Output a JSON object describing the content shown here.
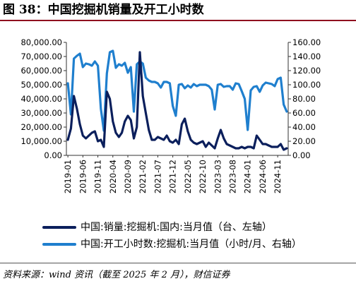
{
  "title": "图 38：中国挖掘机销量及开工小时数",
  "source": "资料来源：wind 资讯（截至 2025 年 2 月），财信证券",
  "colors": {
    "left_series": "#0b1f5c",
    "right_series": "#1f7fce",
    "title_rule": "#8f0d1f"
  },
  "chart_data": {
    "type": "line",
    "title": "",
    "legend_placement": "bottom",
    "grid": false,
    "x_tick_labels": [
      "2019-01",
      "2019-06",
      "2019-11",
      "2020-04",
      "2020-09",
      "2021-02",
      "2021-07",
      "2021-12",
      "2022-05",
      "2022-10",
      "2023-03",
      "2023-08",
      "2024-01",
      "2024-06",
      "2024-11"
    ],
    "y_left": {
      "ylim": [
        0,
        80000
      ],
      "ticks": [
        "0.00",
        "10,000.00",
        "20,000.00",
        "30,000.00",
        "40,000.00",
        "50,000.00",
        "60,000.00",
        "70,000.00",
        "80,000.00"
      ]
    },
    "y_right": {
      "ylim": [
        0,
        160
      ],
      "ticks": [
        "0.00",
        "20.00",
        "40.00",
        "60.00",
        "80.00",
        "100.00",
        "120.00",
        "140.00",
        "160.00"
      ]
    },
    "x_start": "2019-01",
    "series": [
      {
        "name": "中国:销量:挖掘机:国内:当月值（台、左轴）",
        "axis": "left",
        "values": [
          11000,
          19000,
          42000,
          33000,
          22000,
          14000,
          12000,
          14000,
          16000,
          17000,
          10000,
          11000,
          6000,
          45000,
          40000,
          24000,
          16000,
          13000,
          16000,
          24000,
          28000,
          25000,
          12000,
          20000,
          73000,
          42000,
          30000,
          18000,
          11000,
          11000,
          13000,
          12000,
          11000,
          14000,
          10000,
          9000,
          11000,
          8000,
          22000,
          26000,
          17000,
          11000,
          9000,
          8000,
          9000,
          10000,
          6000,
          9000,
          7000,
          5000,
          12000,
          18000,
          12000,
          8000,
          7000,
          6000,
          5000,
          5000,
          6000,
          5000,
          6000,
          6000,
          5000,
          14000,
          11000,
          8000,
          8000,
          7000,
          6000,
          6000,
          6000,
          8000,
          4000,
          5000
        ]
      },
      {
        "name": "中国:开工小时数:挖掘机:当月值（小时/月、右轴）",
        "axis": "right",
        "values": [
          102,
          58,
          137,
          141,
          144,
          125,
          130,
          129,
          127,
          133,
          127,
          66,
          35,
          116,
          146,
          148,
          124,
          129,
          127,
          131,
          117,
          125,
          62,
          129,
          133,
          130,
          110,
          106,
          104,
          104,
          102,
          96,
          104,
          104,
          102,
          70,
          56,
          100,
          101,
          95,
          99,
          96,
          101,
          98,
          100,
          100,
          100,
          98,
          93,
          65,
          100,
          101,
          97,
          98,
          98,
          93,
          102,
          101,
          91,
          80,
          36,
          92,
          97,
          98,
          90,
          99,
          103,
          102,
          101,
          98,
          108,
          110,
          72,
          62
        ]
      }
    ]
  }
}
